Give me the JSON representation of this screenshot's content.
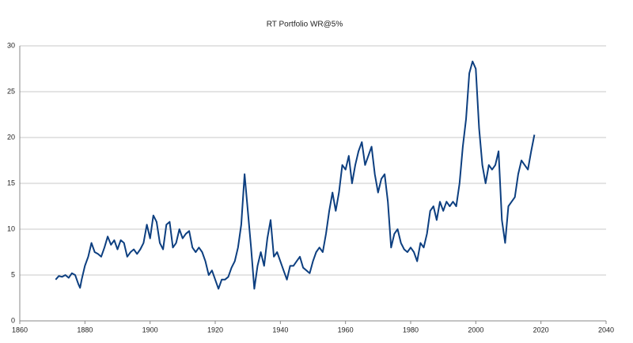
{
  "chart_data": {
    "type": "line",
    "title": "RT Portfolio WR@5%",
    "x": [
      1871,
      1872,
      1873,
      1874,
      1875,
      1876,
      1877,
      1878,
      1878.5,
      1879,
      1880,
      1881,
      1882,
      1883,
      1884,
      1885,
      1886,
      1887,
      1888,
      1889,
      1890,
      1891,
      1892,
      1893,
      1894,
      1895,
      1896,
      1897,
      1898,
      1899,
      1900,
      1901,
      1902,
      1903,
      1904,
      1905,
      1906,
      1907,
      1908,
      1909,
      1910,
      1911,
      1912,
      1913,
      1914,
      1915,
      1916,
      1917,
      1918,
      1919,
      1920,
      1921,
      1922,
      1923,
      1924,
      1925,
      1926,
      1927,
      1928,
      1929,
      1930,
      1931,
      1932,
      1933,
      1934,
      1935,
      1936,
      1937,
      1938,
      1939,
      1940,
      1941,
      1942,
      1943,
      1944,
      1945,
      1946,
      1947,
      1948,
      1949,
      1950,
      1951,
      1952,
      1953,
      1954,
      1955,
      1956,
      1957,
      1958,
      1959,
      1960,
      1961,
      1962,
      1963,
      1964,
      1965,
      1966,
      1967,
      1968,
      1969,
      1970,
      1971,
      1972,
      1973,
      1974,
      1975,
      1976,
      1977,
      1978,
      1979,
      1980,
      1981,
      1982,
      1983,
      1984,
      1985,
      1986,
      1987,
      1988,
      1989,
      1990,
      1991,
      1992,
      1993,
      1994,
      1995,
      1996,
      1997,
      1998,
      1999,
      2000,
      2001,
      2002,
      2003,
      2004,
      2005,
      2006,
      2007,
      2008,
      2009,
      2010,
      2011,
      2012,
      2013,
      2014,
      2015,
      2016,
      2017,
      2018
    ],
    "series": [
      {
        "color": "#0d3f80",
        "values": [
          4.5,
          4.9,
          4.8,
          5.0,
          4.7,
          5.2,
          5.0,
          4.0,
          3.6,
          4.5,
          6.0,
          7.0,
          8.5,
          7.5,
          7.3,
          7.0,
          8.0,
          9.2,
          8.3,
          8.8,
          7.8,
          8.8,
          8.5,
          7.0,
          7.5,
          7.8,
          7.3,
          7.8,
          8.5,
          10.5,
          9.0,
          11.5,
          10.8,
          8.5,
          7.8,
          10.5,
          10.8,
          8.0,
          8.5,
          10.0,
          9.0,
          9.5,
          9.8,
          8.0,
          7.5,
          8.0,
          7.5,
          6.5,
          5.0,
          5.5,
          4.5,
          3.5,
          4.5,
          4.5,
          4.8,
          5.8,
          6.5,
          8.0,
          10.5,
          16.0,
          12.0,
          8.0,
          3.5,
          6.0,
          7.5,
          6.0,
          9.0,
          11.0,
          7.0,
          7.5,
          6.5,
          5.5,
          4.5,
          6.0,
          6.0,
          6.5,
          7.0,
          5.8,
          5.5,
          5.2,
          6.5,
          7.5,
          8.0,
          7.5,
          9.5,
          12.0,
          14.0,
          12.0,
          14.0,
          17.0,
          16.5,
          18.0,
          15.0,
          17.0,
          18.5,
          19.5,
          17.0,
          18.0,
          19.0,
          16.0,
          14.0,
          15.5,
          16.0,
          13.0,
          8.0,
          9.5,
          10.0,
          8.5,
          7.8,
          7.5,
          8.0,
          7.5,
          6.5,
          8.5,
          8.0,
          9.5,
          12.0,
          12.5,
          11.0,
          13.0,
          12.0,
          13.0,
          12.5,
          13.0,
          12.5,
          15.0,
          19.0,
          22.0,
          27.0,
          28.3,
          27.5,
          21.0,
          17.0,
          15.0,
          17.0,
          16.5,
          17.0,
          18.5,
          11.0,
          8.5,
          12.5,
          13.0,
          13.5,
          16.0,
          17.5,
          17.0,
          16.5,
          18.5,
          20.3
        ]
      }
    ],
    "xlim": [
      1860,
      2040
    ],
    "xticks": [
      1860,
      1880,
      1900,
      1920,
      1940,
      1960,
      1980,
      2000,
      2020,
      2040
    ],
    "ylim": [
      0,
      30
    ],
    "yticks": [
      0,
      5,
      10,
      15,
      20,
      25,
      30
    ],
    "grid": true
  }
}
